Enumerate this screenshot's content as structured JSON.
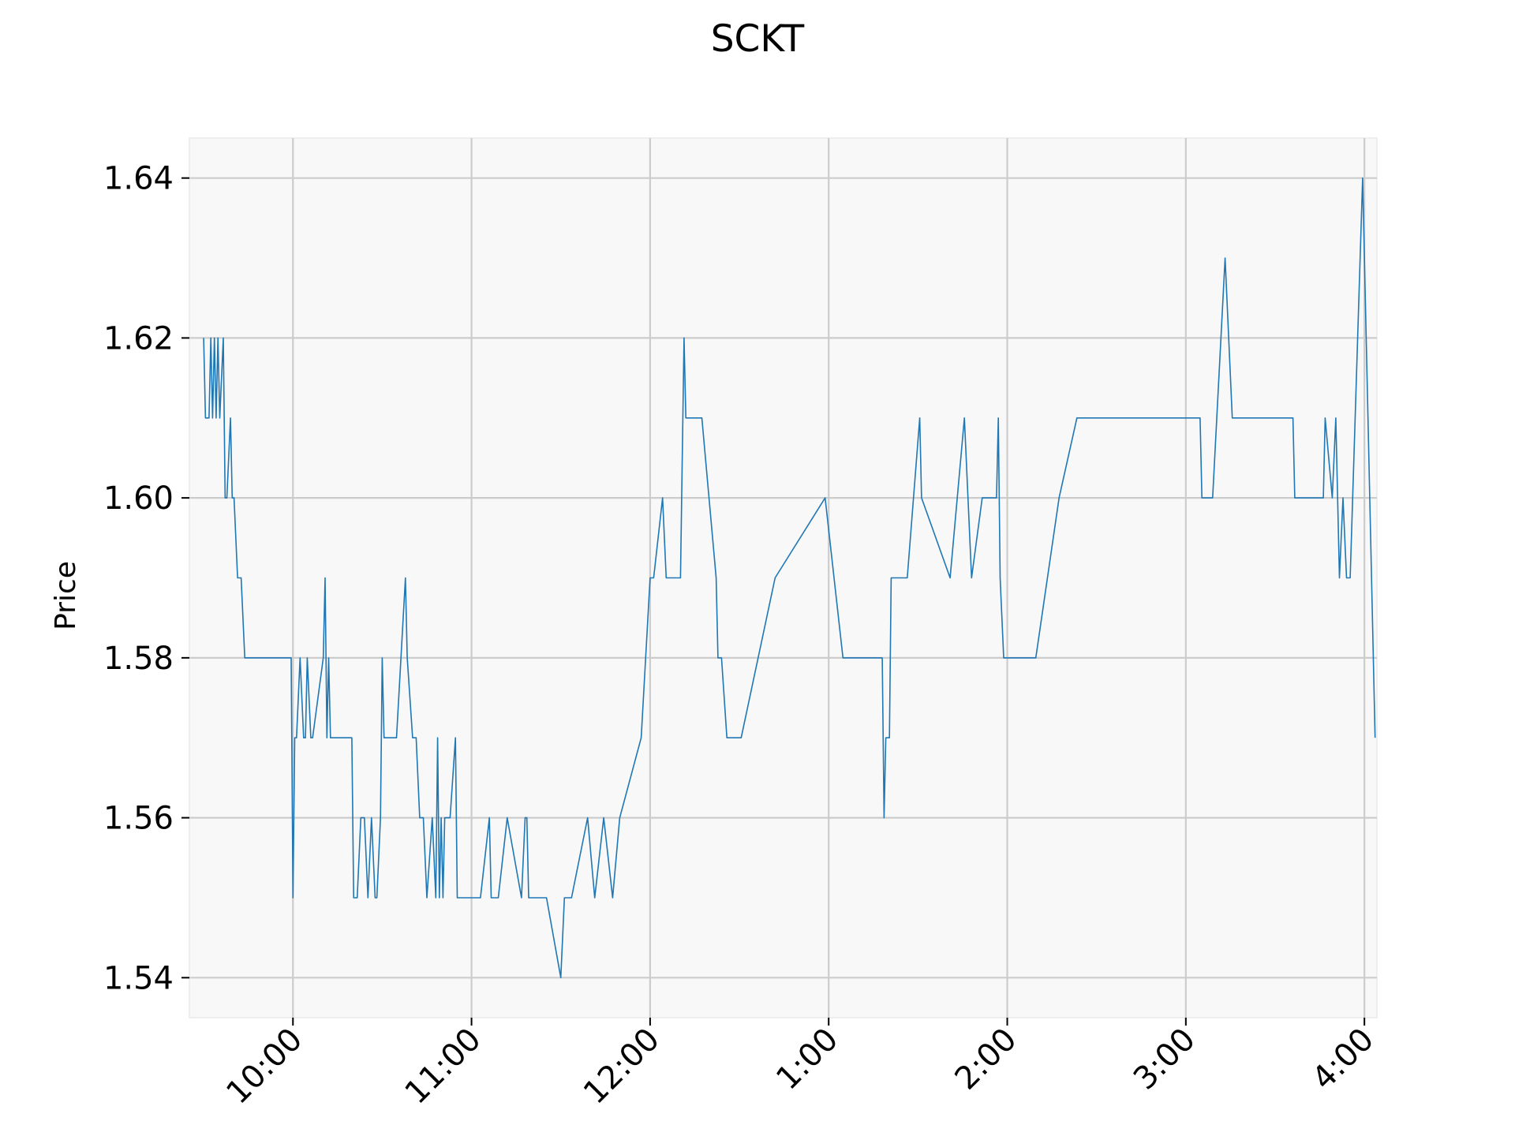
{
  "chart_data": {
    "type": "line",
    "title": "SCKT",
    "xlabel": "",
    "ylabel": "Price",
    "x_unit": "time of day (hours, 24h)",
    "xlim": [
      9.42,
      16.07
    ],
    "ylim": [
      1.535,
      1.645
    ],
    "x_ticks": [
      {
        "value": 10,
        "label": "10:00"
      },
      {
        "value": 11,
        "label": "11:00"
      },
      {
        "value": 12,
        "label": "12:00"
      },
      {
        "value": 13,
        "label": "1:00"
      },
      {
        "value": 14,
        "label": "2:00"
      },
      {
        "value": 15,
        "label": "3:00"
      },
      {
        "value": 16,
        "label": "4:00"
      }
    ],
    "y_ticks": [
      {
        "value": 1.54,
        "label": "1.54"
      },
      {
        "value": 1.56,
        "label": "1.56"
      },
      {
        "value": 1.58,
        "label": "1.58"
      },
      {
        "value": 1.6,
        "label": "1.60"
      },
      {
        "value": 1.62,
        "label": "1.62"
      },
      {
        "value": 1.64,
        "label": "1.64"
      }
    ],
    "grid": true,
    "colors": {
      "line": "#1f77b4",
      "plot_bg": "#f8f8f8",
      "grid": "#cccccc"
    },
    "series": [
      {
        "x": [
          9.5,
          9.51,
          9.53,
          9.54,
          9.55,
          9.56,
          9.57,
          9.58,
          9.59,
          9.61,
          9.62,
          9.63,
          9.65,
          9.66,
          9.67,
          9.69,
          9.7,
          9.71,
          9.73,
          9.74,
          9.76,
          9.78,
          9.83,
          9.84,
          9.85,
          9.99,
          10.0,
          10.01,
          10.02,
          10.04,
          10.06,
          10.07,
          10.08,
          10.1,
          10.11,
          10.17,
          10.18,
          10.19,
          10.2,
          10.21,
          10.33,
          10.34,
          10.36,
          10.38,
          10.4,
          10.42,
          10.44,
          10.46,
          10.47,
          10.49,
          10.5,
          10.51,
          10.52,
          10.58,
          10.63,
          10.64,
          10.67,
          10.69,
          10.71,
          10.73,
          10.75,
          10.78,
          10.8,
          10.81,
          10.82,
          10.83,
          10.84,
          10.85,
          10.86,
          10.88,
          10.91,
          10.92,
          10.93,
          10.98,
          11.05,
          11.1,
          11.11,
          11.12,
          11.15,
          11.2,
          11.28,
          11.3,
          11.31,
          11.32,
          11.33,
          11.42,
          11.5,
          11.52,
          11.56,
          11.65,
          11.69,
          11.74,
          11.79,
          11.83,
          11.95,
          12.0,
          12.02,
          12.07,
          12.09,
          12.17,
          12.19,
          12.2,
          12.29,
          12.37,
          12.38,
          12.4,
          12.43,
          12.51,
          12.7,
          12.98,
          13.08,
          13.3,
          13.31,
          13.32,
          13.34,
          13.35,
          13.44,
          13.51,
          13.52,
          13.68,
          13.76,
          13.8,
          13.86,
          13.93,
          13.94,
          13.95,
          13.96,
          13.98,
          14.0,
          14.16,
          14.29,
          14.39,
          15.08,
          15.09,
          15.15,
          15.22,
          15.26,
          15.6,
          15.61,
          15.77,
          15.78,
          15.82,
          15.84,
          15.86,
          15.88,
          15.9,
          15.92,
          15.99,
          16.06
        ],
        "y": [
          1.62,
          1.61,
          1.61,
          1.62,
          1.61,
          1.62,
          1.61,
          1.62,
          1.61,
          1.62,
          1.6,
          1.6,
          1.61,
          1.6,
          1.6,
          1.59,
          1.59,
          1.59,
          1.58,
          1.58,
          1.58,
          1.58,
          1.58,
          1.58,
          1.58,
          1.58,
          1.55,
          1.57,
          1.57,
          1.58,
          1.57,
          1.57,
          1.58,
          1.57,
          1.57,
          1.58,
          1.59,
          1.57,
          1.58,
          1.57,
          1.57,
          1.55,
          1.55,
          1.56,
          1.56,
          1.55,
          1.56,
          1.55,
          1.55,
          1.56,
          1.58,
          1.57,
          1.57,
          1.57,
          1.59,
          1.58,
          1.57,
          1.57,
          1.56,
          1.56,
          1.55,
          1.56,
          1.55,
          1.57,
          1.55,
          1.56,
          1.55,
          1.56,
          1.56,
          1.56,
          1.57,
          1.55,
          1.55,
          1.55,
          1.55,
          1.56,
          1.55,
          1.55,
          1.55,
          1.56,
          1.55,
          1.56,
          1.56,
          1.55,
          1.55,
          1.55,
          1.54,
          1.55,
          1.55,
          1.56,
          1.55,
          1.56,
          1.55,
          1.56,
          1.57,
          1.59,
          1.59,
          1.6,
          1.59,
          1.59,
          1.62,
          1.61,
          1.61,
          1.59,
          1.58,
          1.58,
          1.57,
          1.57,
          1.59,
          1.6,
          1.58,
          1.58,
          1.56,
          1.57,
          1.57,
          1.59,
          1.59,
          1.61,
          1.6,
          1.59,
          1.61,
          1.59,
          1.6,
          1.6,
          1.6,
          1.61,
          1.59,
          1.58,
          1.58,
          1.58,
          1.6,
          1.61,
          1.61,
          1.6,
          1.6,
          1.63,
          1.61,
          1.61,
          1.6,
          1.6,
          1.61,
          1.6,
          1.61,
          1.59,
          1.6,
          1.59,
          1.59,
          1.64,
          1.57
        ]
      }
    ]
  }
}
